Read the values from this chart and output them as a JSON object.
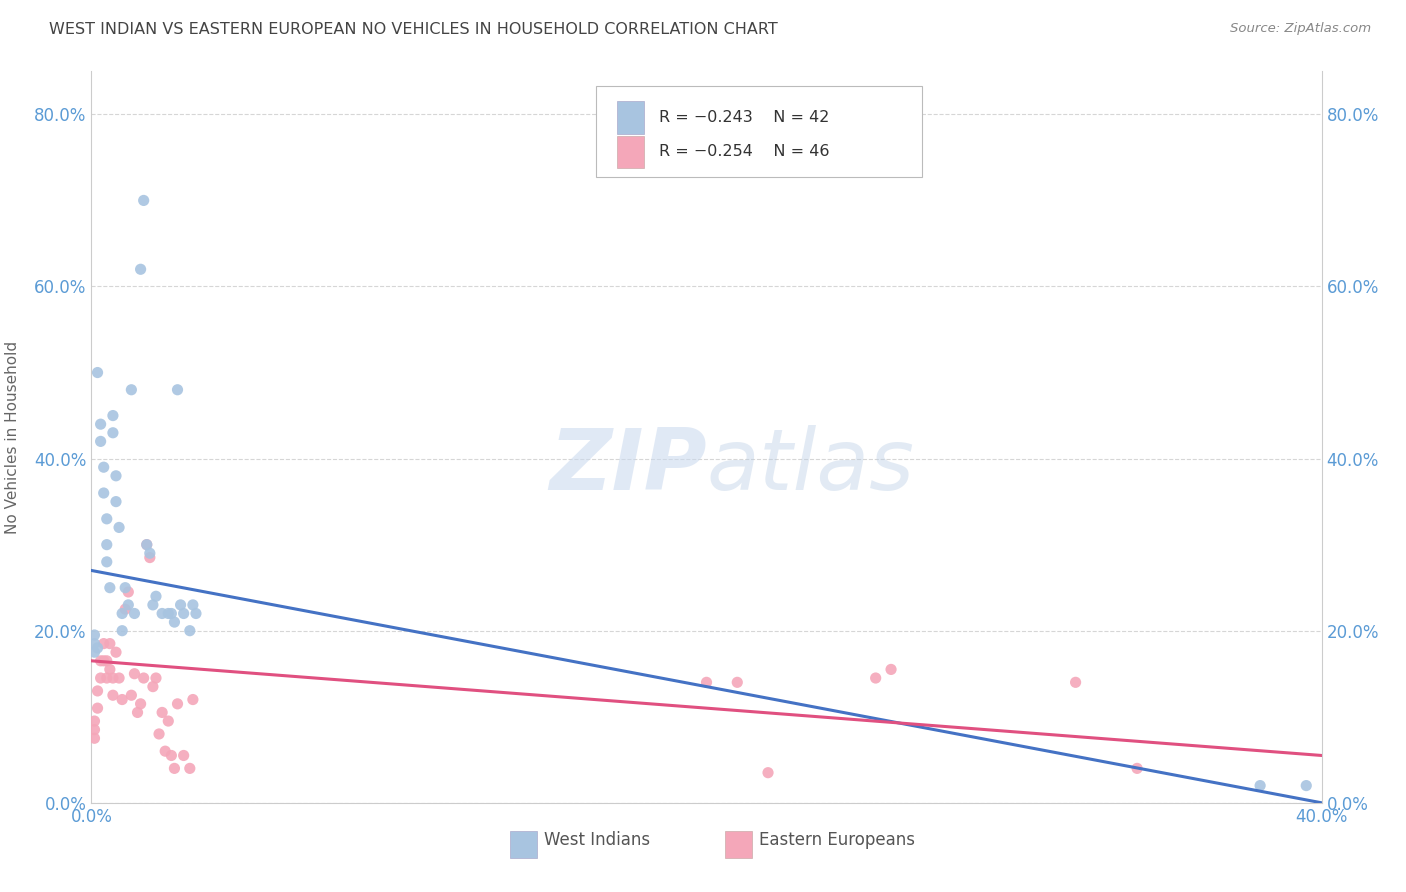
{
  "title": "WEST INDIAN VS EASTERN EUROPEAN NO VEHICLES IN HOUSEHOLD CORRELATION CHART",
  "source": "Source: ZipAtlas.com",
  "ylabel": "No Vehicles in Household",
  "xlim": [
    0.0,
    0.4
  ],
  "ylim": [
    0.0,
    0.85
  ],
  "yticks": [
    0.0,
    0.2,
    0.4,
    0.6,
    0.8
  ],
  "ytick_labels": [
    "0.0%",
    "20.0%",
    "40.0%",
    "60.0%",
    "80.0%"
  ],
  "xtick_labels_left": "0.0%",
  "xtick_labels_right": "40.0%",
  "west_indian_color": "#a8c4e0",
  "eastern_european_color": "#f4a7b9",
  "west_indian_line_color": "#4472c4",
  "eastern_european_line_color": "#e05080",
  "west_indian_R": -0.243,
  "west_indian_N": 42,
  "eastern_european_R": -0.254,
  "eastern_european_N": 46,
  "west_indian_x": [
    0.001,
    0.001,
    0.001,
    0.002,
    0.002,
    0.003,
    0.003,
    0.004,
    0.004,
    0.005,
    0.005,
    0.005,
    0.006,
    0.007,
    0.007,
    0.008,
    0.008,
    0.009,
    0.01,
    0.01,
    0.011,
    0.012,
    0.013,
    0.014,
    0.016,
    0.017,
    0.018,
    0.019,
    0.02,
    0.021,
    0.023,
    0.025,
    0.026,
    0.027,
    0.028,
    0.029,
    0.03,
    0.032,
    0.033,
    0.034,
    0.38,
    0.395
  ],
  "west_indian_y": [
    0.175,
    0.185,
    0.195,
    0.18,
    0.5,
    0.44,
    0.42,
    0.39,
    0.36,
    0.33,
    0.3,
    0.28,
    0.25,
    0.45,
    0.43,
    0.38,
    0.35,
    0.32,
    0.22,
    0.2,
    0.25,
    0.23,
    0.48,
    0.22,
    0.62,
    0.7,
    0.3,
    0.29,
    0.23,
    0.24,
    0.22,
    0.22,
    0.22,
    0.21,
    0.48,
    0.23,
    0.22,
    0.2,
    0.23,
    0.22,
    0.02,
    0.02
  ],
  "eastern_european_x": [
    0.001,
    0.001,
    0.001,
    0.002,
    0.002,
    0.003,
    0.003,
    0.004,
    0.004,
    0.005,
    0.005,
    0.006,
    0.006,
    0.007,
    0.007,
    0.008,
    0.009,
    0.01,
    0.011,
    0.012,
    0.013,
    0.014,
    0.015,
    0.016,
    0.017,
    0.018,
    0.019,
    0.02,
    0.021,
    0.022,
    0.023,
    0.024,
    0.025,
    0.026,
    0.027,
    0.028,
    0.03,
    0.032,
    0.033,
    0.2,
    0.21,
    0.22,
    0.255,
    0.26,
    0.32,
    0.34
  ],
  "eastern_european_y": [
    0.085,
    0.075,
    0.095,
    0.13,
    0.11,
    0.165,
    0.145,
    0.185,
    0.165,
    0.165,
    0.145,
    0.155,
    0.185,
    0.145,
    0.125,
    0.175,
    0.145,
    0.12,
    0.225,
    0.245,
    0.125,
    0.15,
    0.105,
    0.115,
    0.145,
    0.3,
    0.285,
    0.135,
    0.145,
    0.08,
    0.105,
    0.06,
    0.095,
    0.055,
    0.04,
    0.115,
    0.055,
    0.04,
    0.12,
    0.14,
    0.14,
    0.035,
    0.145,
    0.155,
    0.14,
    0.04
  ],
  "wi_line_x0": 0.0,
  "wi_line_y0": 0.27,
  "wi_line_x1": 0.4,
  "wi_line_y1": 0.0,
  "ee_line_x0": 0.0,
  "ee_line_y0": 0.165,
  "ee_line_x1": 0.4,
  "ee_line_y1": 0.055,
  "watermark_zip": "ZIP",
  "watermark_atlas": "atlas",
  "background_color": "#ffffff",
  "grid_color": "#cccccc",
  "title_color": "#444444",
  "axis_tick_color": "#5b9bd5",
  "ylabel_color": "#666666",
  "legend_R_color": "#cc3366",
  "marker_size": 65,
  "legend_label1": "R = −0.243    N = 42",
  "legend_label2": "R = −0.254    N = 46",
  "bottom_legend_label1": "West Indians",
  "bottom_legend_label2": "Eastern Europeans"
}
